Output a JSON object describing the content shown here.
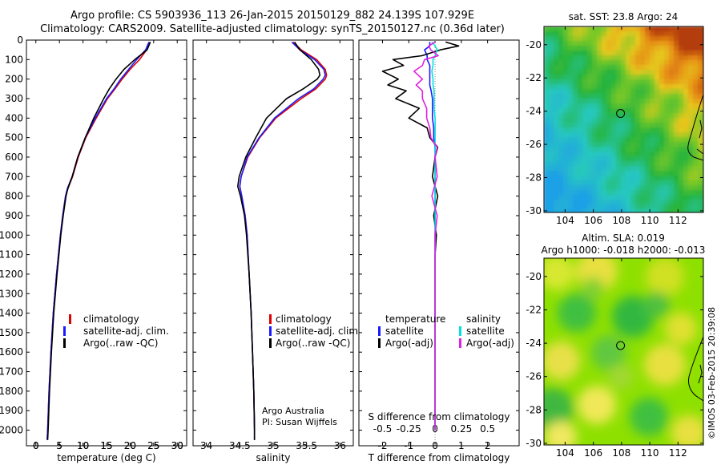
{
  "header": {
    "title_line1": "Argo profile: CS 5903936_113 26-Jan-2015 20150129_882 24.139S 107.929E",
    "title_line2": "Climatology: CARS2009. Satellite-adjusted climatology: synTS_20150127.nc (0.36d later)"
  },
  "colors": {
    "climatology": "#e00000",
    "satellite": "#1a1aff",
    "argo": "#000000",
    "salinity_satellite": "#00e0e0",
    "salinity_argo": "#e020e0"
  },
  "panels": {
    "temperature": {
      "legend": [
        "climatology",
        "satellite-adj. clim.",
        "Argo(..raw -QC)"
      ]
    },
    "salinity": {
      "legend": [
        "climatology",
        "satellite-adj. clim.",
        "Argo(..raw -QC)"
      ],
      "note1": "Argo Australia",
      "note2": "PI: Susan Wijffels"
    },
    "difference": {
      "legend_temp_title": "temperature",
      "legend_sal_title": "salinity",
      "legend_temp": [
        "satellite",
        "Argo(-adj)"
      ],
      "legend_sal": [
        "satellite",
        "Argo(-adj)"
      ],
      "top_label": "S difference from climatology",
      "bottom_label": "T difference from climatology"
    }
  },
  "maps": {
    "sst": {
      "title": "sat. SST: 23.8  Argo: 24",
      "xticks": [
        "104",
        "106",
        "108",
        "110",
        "112"
      ],
      "yticks": [
        "-20",
        "-22",
        "-24",
        "-26",
        "-28",
        "-30"
      ]
    },
    "sla": {
      "title_line1": "Altim. SLA: 0.019",
      "title_line2": "Argo h1000: -0.018 h2000: -0.013",
      "xticks": [
        "104",
        "106",
        "108",
        "110",
        "112"
      ],
      "yticks": [
        "-20",
        "-22",
        "-24",
        "-26",
        "-28",
        "-30"
      ]
    },
    "credit": "©IMOS 03-Feb-2015 20:39:08"
  },
  "chart_data": [
    {
      "type": "line",
      "panel": "temperature",
      "xlabel": "temperature (deg C)",
      "ylabel": "",
      "xlim": [
        -2,
        32
      ],
      "ylim": [
        2080,
        0
      ],
      "xticks": [
        0,
        5,
        10,
        15,
        20,
        25,
        30
      ],
      "yticks": [
        0,
        100,
        200,
        300,
        400,
        500,
        600,
        700,
        800,
        900,
        1000,
        1100,
        1200,
        1300,
        1400,
        1500,
        1600,
        1700,
        1800,
        1900,
        2000
      ],
      "y": [
        10,
        50,
        100,
        150,
        200,
        250,
        300,
        400,
        500,
        600,
        700,
        760,
        800,
        900,
        1000,
        1200,
        1400,
        1600,
        1800,
        2000,
        2050
      ],
      "series": [
        {
          "name": "climatology",
          "values": [
            24.2,
            23.5,
            22.0,
            20.0,
            18.3,
            16.8,
            15.2,
            12.8,
            10.6,
            9.0,
            7.8,
            6.8,
            6.3,
            5.7,
            5.2,
            4.4,
            3.7,
            3.2,
            2.8,
            2.5,
            2.4
          ]
        },
        {
          "name": "satellite-adj. clim.",
          "values": [
            24.0,
            23.3,
            21.4,
            19.7,
            18.0,
            16.6,
            15.0,
            12.6,
            10.5,
            8.9,
            7.7,
            6.7,
            6.3,
            5.7,
            5.2,
            4.4,
            3.7,
            3.2,
            2.8,
            2.5,
            2.4
          ]
        },
        {
          "name": "Argo(..raw -QC)",
          "values": [
            24.3,
            23.6,
            21.0,
            18.7,
            17.0,
            15.6,
            14.4,
            12.3,
            10.5,
            8.9,
            7.7,
            6.8,
            6.4,
            5.8,
            5.3,
            4.5,
            3.8,
            3.3,
            2.9,
            2.6,
            2.5
          ]
        }
      ]
    },
    {
      "type": "line",
      "panel": "salinity",
      "xlabel": "salinity",
      "ylabel": "",
      "xlim": [
        33.8,
        36.2
      ],
      "ylim": [
        2080,
        0
      ],
      "xticks": [
        34,
        34.5,
        35,
        35.5,
        36
      ],
      "y": [
        10,
        50,
        100,
        150,
        180,
        200,
        250,
        300,
        400,
        500,
        600,
        700,
        750,
        800,
        900,
        1000,
        1200,
        1400,
        1600,
        1800,
        2000,
        2050
      ],
      "series": [
        {
          "name": "climatology",
          "values": [
            35.3,
            35.42,
            35.65,
            35.78,
            35.8,
            35.78,
            35.64,
            35.42,
            35.04,
            34.8,
            34.62,
            34.52,
            34.5,
            34.53,
            34.58,
            34.61,
            34.64,
            34.67,
            34.69,
            34.71,
            34.72,
            34.72
          ]
        },
        {
          "name": "satellite-adj. clim.",
          "values": [
            35.28,
            35.4,
            35.62,
            35.76,
            35.78,
            35.75,
            35.61,
            35.38,
            35.02,
            34.79,
            34.61,
            34.52,
            34.5,
            34.53,
            34.58,
            34.61,
            34.64,
            34.67,
            34.69,
            34.71,
            34.72,
            34.72
          ]
        },
        {
          "name": "Argo(..raw -QC)",
          "values": [
            35.32,
            35.4,
            35.57,
            35.68,
            35.7,
            35.66,
            35.45,
            35.2,
            34.9,
            34.74,
            34.59,
            34.49,
            34.47,
            34.51,
            34.57,
            34.6,
            34.64,
            34.67,
            34.69,
            34.71,
            34.72,
            34.72
          ]
        }
      ]
    },
    {
      "type": "line",
      "panel": "difference",
      "xlabel": "T difference from climatology",
      "x2label": "S difference from climatology",
      "ylabel": "",
      "xlim": [
        -2.9,
        3.2
      ],
      "x2lim": [
        -0.725,
        0.8
      ],
      "ylim": [
        2080,
        0
      ],
      "xticks": [
        -2,
        -1,
        0,
        1,
        2
      ],
      "x2ticks": [
        -0.5,
        -0.25,
        0,
        0.25,
        0.5
      ],
      "y": [
        10,
        30,
        50,
        80,
        100,
        130,
        160,
        200,
        230,
        260,
        300,
        350,
        400,
        450,
        500,
        550,
        600,
        700,
        800,
        900,
        1000,
        1100,
        1300,
        1500,
        1700,
        1900,
        2000
      ],
      "series": [
        {
          "name": "temperature satellite",
          "axis": "T",
          "values": [
            -0.2,
            -0.2,
            -0.4,
            -0.3,
            -0.3,
            -0.2,
            -0.2,
            -0.2,
            -0.2,
            -0.15,
            -0.1,
            -0.1,
            -0.1,
            -0.05,
            -0.05,
            0,
            0,
            0,
            0,
            0,
            0,
            0,
            0,
            0,
            0,
            0,
            0
          ]
        },
        {
          "name": "temperature Argo(-adj)",
          "axis": "T",
          "values": [
            0.4,
            0.9,
            0.2,
            -0.5,
            -1.6,
            -1.2,
            -2.0,
            -1.4,
            -1.8,
            -1.1,
            -1.5,
            -0.6,
            -1.0,
            -0.3,
            -0.2,
            0.1,
            0,
            -0.1,
            0.1,
            -0.05,
            0.05,
            0,
            0,
            0,
            0,
            0,
            0
          ]
        },
        {
          "name": "salinity satellite",
          "axis": "S",
          "values": [
            -0.03,
            0,
            0.02,
            0,
            -0.02,
            -0.02,
            -0.03,
            -0.02,
            -0.02,
            -0.01,
            -0.01,
            -0.01,
            0,
            0,
            0,
            0,
            0,
            0,
            0,
            0,
            0,
            0,
            0,
            0,
            0,
            0,
            0
          ]
        },
        {
          "name": "salinity Argo(-adj)",
          "axis": "S",
          "values": [
            0,
            -0.06,
            -0.04,
            0.03,
            -0.1,
            -0.12,
            -0.2,
            -0.12,
            -0.18,
            -0.12,
            -0.12,
            -0.08,
            -0.08,
            -0.05,
            -0.04,
            0.02,
            0,
            0.02,
            -0.03,
            0.02,
            0,
            0,
            0,
            0,
            0,
            0,
            0
          ]
        }
      ]
    },
    {
      "type": "heatmap",
      "panel": "sst_map",
      "title": "sat. SST: 23.8  Argo: 24",
      "xlim": [
        102.5,
        113.8
      ],
      "ylim": [
        -30.1,
        -18.9
      ],
      "xticks": [
        104,
        106,
        108,
        110,
        112
      ],
      "yticks": [
        -20,
        -22,
        -24,
        -26,
        -28,
        -30
      ],
      "marker": {
        "lon": 107.929,
        "lat": -24.139
      },
      "value_range": [
        20,
        28
      ]
    },
    {
      "type": "heatmap",
      "panel": "sla_map",
      "title": "Altim. SLA: 0.019",
      "xlim": [
        102.5,
        113.8
      ],
      "ylim": [
        -30.1,
        -18.9
      ],
      "xticks": [
        104,
        106,
        108,
        110,
        112
      ],
      "yticks": [
        -20,
        -22,
        -24,
        -26,
        -28,
        -30
      ],
      "marker": {
        "lon": 107.929,
        "lat": -24.139
      }
    }
  ]
}
